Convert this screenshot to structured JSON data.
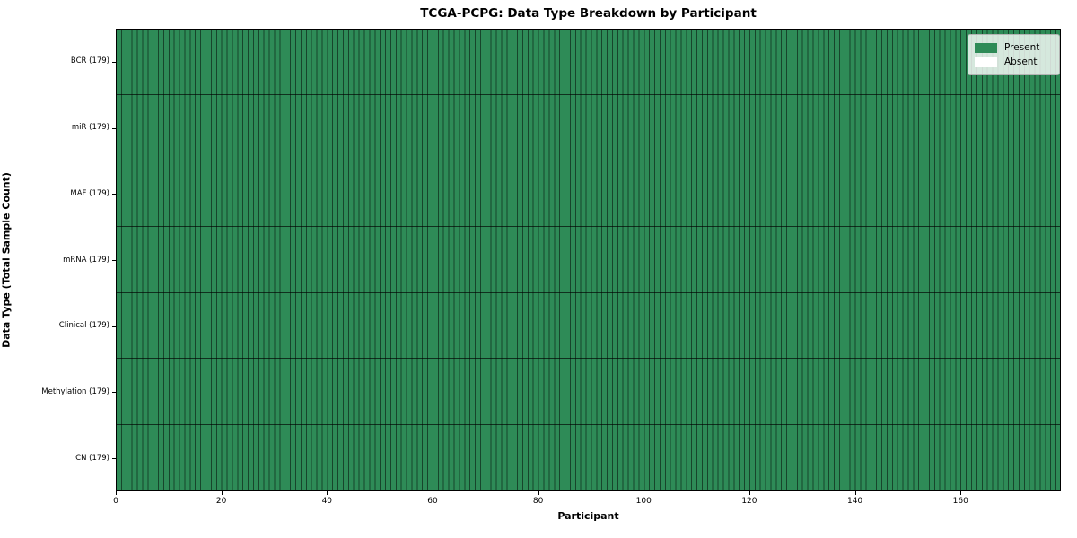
{
  "chart": {
    "title": "TCGA-PCPG: Data Type Breakdown by Participant",
    "xlabel": "Participant",
    "ylabel": "Data Type (Total Sample Count)"
  },
  "colors": {
    "present": "#2e8b57",
    "absent": "#ffffff",
    "cell_divider": "rgba(0,0,0,0.5)",
    "axis": "#000000"
  },
  "legend": {
    "entries": [
      {
        "label": "Present",
        "color": "#2e8b57"
      },
      {
        "label": "Absent",
        "color": "#ffffff"
      }
    ]
  },
  "chart_data": {
    "type": "heatmap",
    "title": "TCGA-PCPG: Data Type Breakdown by Participant",
    "xlabel": "Participant",
    "ylabel": "Data Type (Total Sample Count)",
    "n_participants": 179,
    "x_range": [
      0,
      179
    ],
    "x_ticks": [
      0,
      20,
      40,
      60,
      80,
      100,
      120,
      140,
      160
    ],
    "grid": true,
    "legend_position": "upper right",
    "rows": [
      {
        "category": "BCR",
        "tick_label": "BCR (179)",
        "total_samples": 179,
        "present_count": 179,
        "absent_count": 0
      },
      {
        "category": "miR",
        "tick_label": "miR (179)",
        "total_samples": 179,
        "present_count": 179,
        "absent_count": 0
      },
      {
        "category": "MAF",
        "tick_label": "MAF (179)",
        "total_samples": 179,
        "present_count": 179,
        "absent_count": 0
      },
      {
        "category": "mRNA",
        "tick_label": "mRNA (179)",
        "total_samples": 179,
        "present_count": 179,
        "absent_count": 0
      },
      {
        "category": "Clinical",
        "tick_label": "Clinical (179)",
        "total_samples": 179,
        "present_count": 179,
        "absent_count": 0
      },
      {
        "category": "Methylation",
        "tick_label": "Methylation (179)",
        "total_samples": 179,
        "present_count": 179,
        "absent_count": 0
      },
      {
        "category": "CN",
        "tick_label": "CN (179)",
        "total_samples": 179,
        "present_count": 179,
        "absent_count": 0
      }
    ]
  }
}
